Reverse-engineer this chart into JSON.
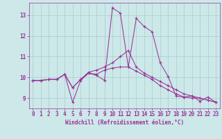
{
  "xlabel": "Windchill (Refroidissement éolien,°C)",
  "xlim": [
    -0.5,
    23.5
  ],
  "ylim": [
    8.5,
    13.6
  ],
  "yticks": [
    9,
    10,
    11,
    12,
    13
  ],
  "xticks": [
    0,
    1,
    2,
    3,
    4,
    5,
    6,
    7,
    8,
    9,
    10,
    11,
    12,
    13,
    14,
    15,
    16,
    17,
    18,
    19,
    20,
    21,
    22,
    23
  ],
  "bg_color": "#cce8e8",
  "line_color": "#993399",
  "grid_color": "#aacccc",
  "series": [
    [
      9.85,
      9.85,
      9.9,
      9.9,
      10.15,
      8.8,
      9.85,
      10.2,
      10.1,
      9.85,
      13.35,
      13.1,
      10.5,
      12.85,
      12.45,
      12.2,
      10.7,
      10.05,
      9.1,
      9.05,
      9.1,
      8.85,
      9.05,
      8.8
    ],
    [
      9.85,
      9.85,
      9.9,
      9.9,
      10.15,
      9.5,
      9.9,
      10.2,
      10.15,
      10.35,
      10.45,
      10.5,
      10.5,
      10.3,
      10.1,
      9.9,
      9.6,
      9.4,
      9.2,
      9.05,
      9.0,
      9.0,
      8.9,
      8.8
    ],
    [
      9.85,
      9.85,
      9.9,
      9.9,
      10.15,
      9.5,
      9.9,
      10.25,
      10.35,
      10.5,
      10.7,
      11.0,
      11.3,
      10.5,
      10.2,
      10.0,
      9.8,
      9.6,
      9.4,
      9.2,
      9.1,
      9.0,
      8.9,
      8.8
    ]
  ],
  "figsize": [
    3.2,
    2.0
  ],
  "dpi": 100,
  "tick_fontsize": 5.5,
  "xlabel_fontsize": 5.5
}
